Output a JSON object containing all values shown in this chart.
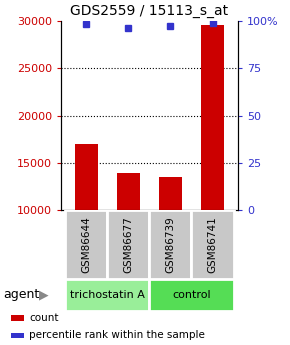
{
  "title": "GDS2559 / 15113_s_at",
  "samples": [
    "GSM86644",
    "GSM86677",
    "GSM86739",
    "GSM86741"
  ],
  "counts": [
    17000,
    14000,
    13500,
    29500
  ],
  "percentiles": [
    98,
    96,
    97,
    99
  ],
  "ylim_left": [
    10000,
    30000
  ],
  "ylim_right": [
    0,
    100
  ],
  "yticks_left": [
    10000,
    15000,
    20000,
    25000,
    30000
  ],
  "yticks_right": [
    0,
    25,
    50,
    75,
    100
  ],
  "ytick_labels_right": [
    "0",
    "25",
    "50",
    "75",
    "100%"
  ],
  "bar_color": "#cc0000",
  "dot_color": "#3333cc",
  "agent_groups": [
    {
      "label": "trichostatin A",
      "color": "#99ee99",
      "samples": [
        0,
        1
      ]
    },
    {
      "label": "control",
      "color": "#55dd55",
      "samples": [
        2,
        3
      ]
    }
  ],
  "sample_box_color": "#c8c8c8",
  "legend_items": [
    {
      "color": "#cc0000",
      "label": "count"
    },
    {
      "color": "#3333cc",
      "label": "percentile rank within the sample"
    }
  ],
  "bar_width": 0.55,
  "x_positions": [
    0,
    1,
    2,
    3
  ],
  "title_fontsize": 10,
  "tick_fontsize": 8,
  "label_fontsize": 8
}
